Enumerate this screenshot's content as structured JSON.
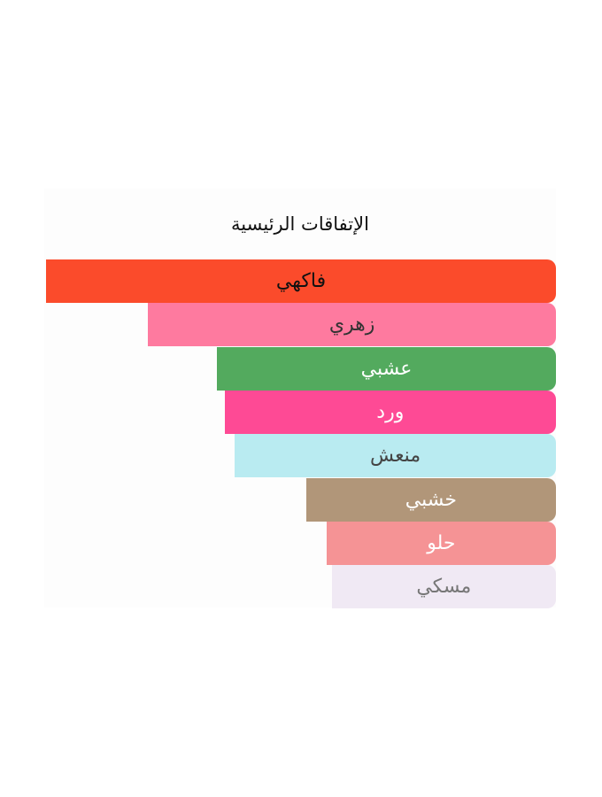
{
  "chart_data": {
    "type": "bar",
    "orientation": "horizontal",
    "title": "الإتفاقات الرئيسية",
    "categories": [
      "فاكهي",
      "زهري",
      "عشبي",
      "ورد",
      "منعش",
      "خشبي",
      "حلو",
      "مسكي"
    ],
    "values": [
      100,
      80,
      66.5,
      65,
      63,
      49,
      45,
      44
    ],
    "unit": "%",
    "xlim": [
      0,
      100
    ],
    "grid": false,
    "colors": [
      "#fb4b2b",
      "#fe7a9f",
      "#53aa5e",
      "#fe4a95",
      "#b9ebf1",
      "#b19679",
      "#f59395",
      "#f0e9f4"
    ],
    "text_colors": [
      "#111111",
      "#333333",
      "#ffffff",
      "#ffffff",
      "#444444",
      "#ffffff",
      "#ffffff",
      "#777777"
    ]
  }
}
